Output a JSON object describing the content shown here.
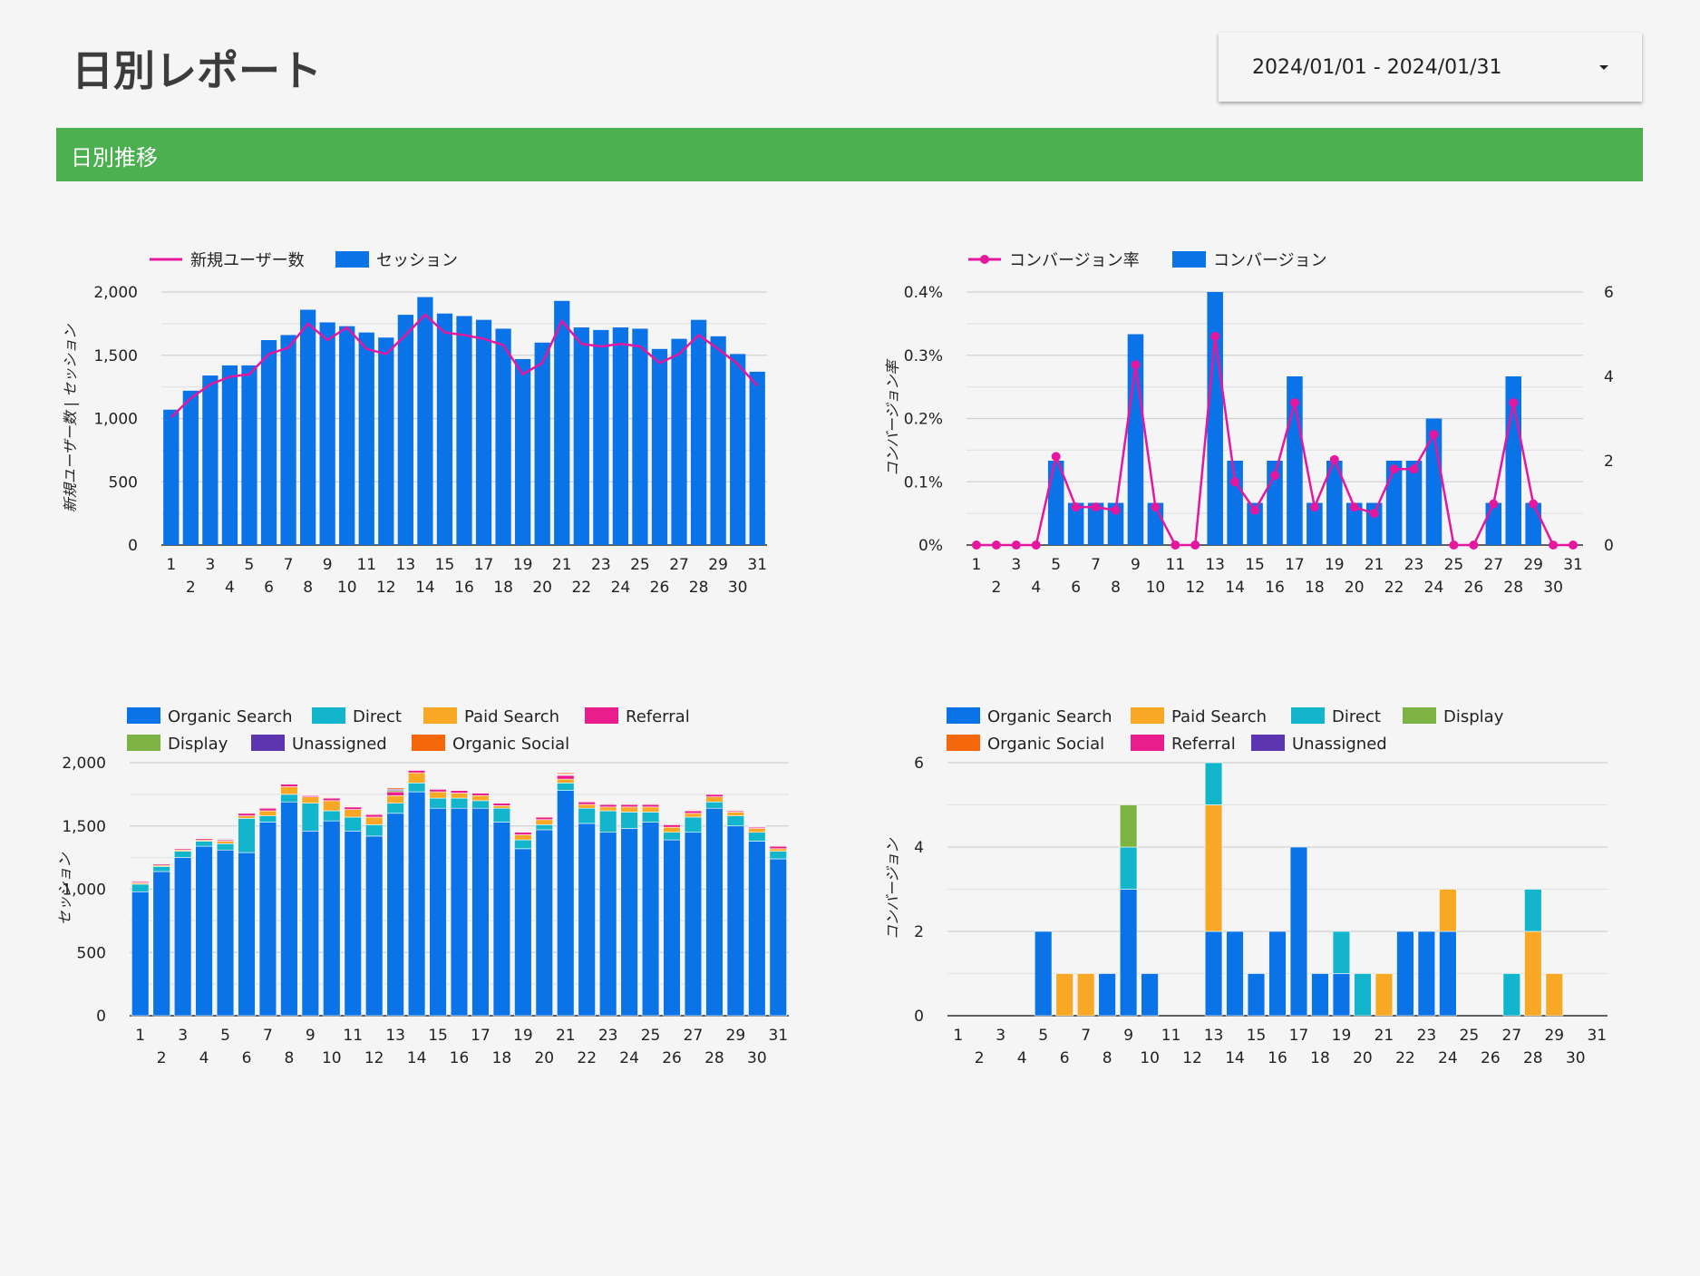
{
  "page": {
    "title": "日別レポート",
    "section_title": "日別推移"
  },
  "date_range": {
    "value": "2024/01/01 - 2024/01/31"
  },
  "colors": {
    "primary": "#0a73e8",
    "accent": "#e5179f",
    "banner": "#4caf50",
    "organic_search": "#0a73e8",
    "direct": "#12b5cb",
    "paid_search": "#f9a825",
    "referral": "#e91e8c",
    "display": "#7cb342",
    "unassigned": "#5e35b1",
    "organic_social": "#f4680b"
  },
  "chart_data": [
    {
      "type": "bar",
      "categories": [
        "1",
        "2",
        "3",
        "4",
        "5",
        "6",
        "7",
        "8",
        "9",
        "10",
        "11",
        "12",
        "13",
        "14",
        "15",
        "16",
        "17",
        "18",
        "19",
        "20",
        "21",
        "22",
        "23",
        "24",
        "25",
        "26",
        "27",
        "28",
        "29",
        "30",
        "31"
      ],
      "series": [
        {
          "name": "セッション",
          "type": "bar",
          "values": [
            1070,
            1220,
            1340,
            1420,
            1420,
            1620,
            1660,
            1860,
            1760,
            1730,
            1680,
            1640,
            1820,
            1960,
            1830,
            1810,
            1780,
            1710,
            1470,
            1600,
            1930,
            1720,
            1700,
            1720,
            1710,
            1550,
            1630,
            1780,
            1650,
            1510,
            1370
          ]
        },
        {
          "name": "新規ユーザー数",
          "type": "line",
          "values": [
            1010,
            1160,
            1270,
            1330,
            1350,
            1510,
            1560,
            1750,
            1620,
            1720,
            1550,
            1510,
            1660,
            1820,
            1680,
            1660,
            1630,
            1580,
            1350,
            1440,
            1770,
            1590,
            1570,
            1590,
            1570,
            1440,
            1510,
            1660,
            1550,
            1430,
            1260
          ]
        }
      ],
      "ylabel": "新規ユーザー数 | セッション",
      "ylim": [
        0,
        2000
      ],
      "yticks": [
        "0",
        "500",
        "1,000",
        "1,500",
        "2,000"
      ],
      "legend": "top-left",
      "grid": true
    },
    {
      "type": "bar",
      "categories": [
        "1",
        "2",
        "3",
        "4",
        "5",
        "6",
        "7",
        "8",
        "9",
        "10",
        "11",
        "12",
        "13",
        "14",
        "15",
        "16",
        "17",
        "18",
        "19",
        "20",
        "21",
        "22",
        "23",
        "24",
        "25",
        "26",
        "27",
        "28",
        "29",
        "30",
        "31"
      ],
      "series": [
        {
          "name": "コンバージョン",
          "type": "bar",
          "axis": "right",
          "values": [
            0,
            0,
            0,
            0,
            2,
            1,
            1,
            1,
            5,
            1,
            0,
            0,
            6,
            2,
            1,
            2,
            4,
            1,
            2,
            1,
            1,
            2,
            2,
            3,
            0,
            0,
            1,
            4,
            1,
            0,
            0
          ]
        },
        {
          "name": "コンバージョン率",
          "type": "line",
          "axis": "left",
          "values": [
            0,
            0,
            0,
            0,
            0.14,
            0.06,
            0.06,
            0.055,
            0.285,
            0.06,
            0,
            0,
            0.33,
            0.1,
            0.055,
            0.11,
            0.225,
            0.06,
            0.135,
            0.06,
            0.05,
            0.12,
            0.12,
            0.175,
            0,
            0,
            0.065,
            0.225,
            0.065,
            0,
            0
          ]
        }
      ],
      "ylabel": "コンバージョン率",
      "ylim": [
        0,
        0.4
      ],
      "yticks": [
        "0%",
        "0.1%",
        "0.2%",
        "0.3%",
        "0.4%"
      ],
      "y2lim": [
        0,
        6
      ],
      "y2ticks": [
        "0",
        "2",
        "4",
        "6"
      ],
      "legend": "top-left",
      "grid": true
    },
    {
      "type": "bar",
      "stacked": true,
      "categories": [
        "1",
        "2",
        "3",
        "4",
        "5",
        "6",
        "7",
        "8",
        "9",
        "10",
        "11",
        "12",
        "13",
        "14",
        "15",
        "16",
        "17",
        "18",
        "19",
        "20",
        "21",
        "22",
        "23",
        "24",
        "25",
        "26",
        "27",
        "28",
        "29",
        "30",
        "31"
      ],
      "series": [
        {
          "name": "Organic Search",
          "values": [
            980,
            1140,
            1250,
            1340,
            1310,
            1290,
            1530,
            1690,
            1460,
            1540,
            1460,
            1420,
            1600,
            1770,
            1640,
            1640,
            1640,
            1530,
            1320,
            1470,
            1780,
            1520,
            1450,
            1480,
            1530,
            1390,
            1450,
            1640,
            1500,
            1380,
            1240
          ]
        },
        {
          "name": "Direct",
          "values": [
            60,
            40,
            50,
            40,
            50,
            270,
            50,
            60,
            220,
            80,
            110,
            90,
            80,
            70,
            80,
            80,
            60,
            110,
            70,
            40,
            60,
            120,
            170,
            130,
            80,
            60,
            120,
            50,
            80,
            70,
            60
          ]
        },
        {
          "name": "Paid Search",
          "values": [
            10,
            10,
            10,
            10,
            20,
            20,
            40,
            60,
            50,
            80,
            60,
            60,
            60,
            80,
            50,
            40,
            40,
            20,
            40,
            40,
            30,
            30,
            30,
            40,
            40,
            40,
            30,
            40,
            30,
            30,
            20
          ]
        },
        {
          "name": "Referral",
          "values": [
            10,
            10,
            10,
            10,
            10,
            20,
            20,
            20,
            10,
            20,
            20,
            20,
            30,
            20,
            20,
            20,
            20,
            20,
            20,
            20,
            30,
            20,
            20,
            20,
            20,
            20,
            20,
            20,
            10,
            10,
            20
          ]
        },
        {
          "name": "Display",
          "values": [
            5,
            5,
            5,
            5,
            5,
            5,
            5,
            5,
            5,
            5,
            5,
            5,
            10,
            5,
            5,
            5,
            5,
            5,
            5,
            5,
            5,
            5,
            5,
            5,
            5,
            5,
            5,
            5,
            5,
            5,
            5
          ]
        },
        {
          "name": "Unassigned",
          "values": [
            5,
            5,
            5,
            5,
            5,
            5,
            5,
            5,
            5,
            5,
            5,
            5,
            10,
            5,
            5,
            5,
            5,
            5,
            5,
            5,
            5,
            5,
            5,
            5,
            5,
            5,
            5,
            5,
            5,
            5,
            5
          ]
        },
        {
          "name": "Organic Social",
          "values": [
            5,
            5,
            5,
            5,
            5,
            5,
            5,
            5,
            5,
            5,
            5,
            5,
            10,
            5,
            5,
            5,
            5,
            5,
            5,
            5,
            10,
            5,
            5,
            5,
            5,
            5,
            5,
            5,
            5,
            5,
            5
          ]
        }
      ],
      "ylabel": "セッション",
      "ylim": [
        0,
        2000
      ],
      "yticks": [
        "0",
        "500",
        "1,000",
        "1,500",
        "2,000"
      ],
      "legend": "top-left",
      "grid": true
    },
    {
      "type": "bar",
      "stacked": true,
      "categories": [
        "1",
        "2",
        "3",
        "4",
        "5",
        "6",
        "7",
        "8",
        "9",
        "10",
        "11",
        "12",
        "13",
        "14",
        "15",
        "16",
        "17",
        "18",
        "19",
        "20",
        "21",
        "22",
        "23",
        "24",
        "25",
        "26",
        "27",
        "28",
        "29",
        "30",
        "31"
      ],
      "series": [
        {
          "name": "Organic Search",
          "values": [
            0,
            0,
            0,
            0,
            2,
            0,
            0,
            1,
            3,
            1,
            0,
            0,
            2,
            2,
            1,
            2,
            4,
            1,
            1,
            0,
            0,
            2,
            2,
            2,
            0,
            0,
            0,
            0,
            0,
            0,
            0
          ]
        },
        {
          "name": "Paid Search",
          "values": [
            0,
            0,
            0,
            0,
            0,
            1,
            1,
            0,
            0,
            0,
            0,
            0,
            3,
            0,
            0,
            0,
            0,
            0,
            0,
            0,
            1,
            0,
            0,
            1,
            0,
            0,
            0,
            2,
            1,
            0,
            0
          ]
        },
        {
          "name": "Direct",
          "values": [
            0,
            0,
            0,
            0,
            0,
            0,
            0,
            0,
            1,
            0,
            0,
            0,
            1,
            0,
            0,
            0,
            0,
            0,
            1,
            1,
            0,
            0,
            0,
            0,
            0,
            0,
            1,
            1,
            0,
            0,
            0
          ]
        },
        {
          "name": "Display",
          "values": [
            0,
            0,
            0,
            0,
            0,
            0,
            0,
            0,
            1,
            0,
            0,
            0,
            0,
            0,
            0,
            0,
            0,
            0,
            0,
            0,
            0,
            0,
            0,
            0,
            0,
            0,
            0,
            0,
            0,
            0,
            0
          ]
        },
        {
          "name": "Organic Social",
          "values": [
            0,
            0,
            0,
            0,
            0,
            0,
            0,
            0,
            0,
            0,
            0,
            0,
            0,
            0,
            0,
            0,
            0,
            0,
            0,
            0,
            0,
            0,
            0,
            0,
            0,
            0,
            0,
            0,
            0,
            0,
            0
          ]
        },
        {
          "name": "Referral",
          "values": [
            0,
            0,
            0,
            0,
            0,
            0,
            0,
            0,
            0,
            0,
            0,
            0,
            0,
            0,
            0,
            0,
            0,
            0,
            0,
            0,
            0,
            0,
            0,
            0,
            0,
            0,
            0,
            0,
            0,
            0,
            0
          ]
        },
        {
          "name": "Unassigned",
          "values": [
            0,
            0,
            0,
            0,
            0,
            0,
            0,
            0,
            0,
            0,
            0,
            0,
            0,
            0,
            0,
            0,
            0,
            0,
            0,
            0,
            0,
            0,
            0,
            0,
            0,
            0,
            0,
            0,
            0,
            0,
            0
          ]
        }
      ],
      "ylabel": "コンバージョン",
      "ylim": [
        0,
        6
      ],
      "yticks": [
        "0",
        "2",
        "4",
        "6"
      ],
      "legend": "top-left",
      "grid": true
    }
  ]
}
